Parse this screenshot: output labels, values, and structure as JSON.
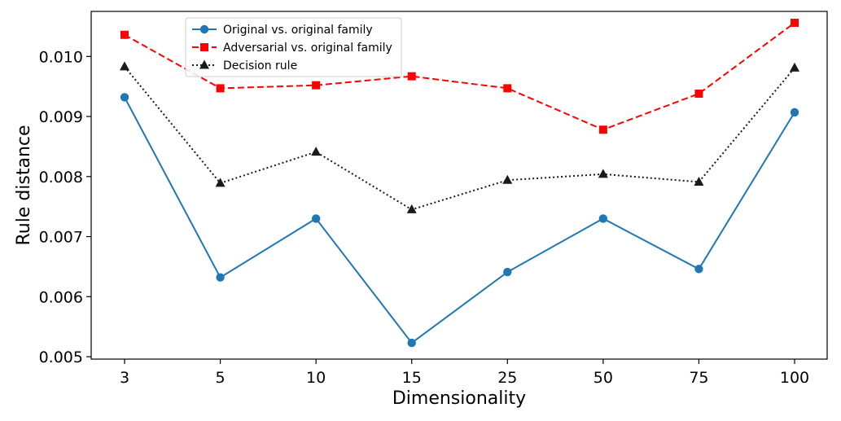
{
  "chart_data": {
    "type": "line",
    "title": "",
    "xlabel": "Dimensionality",
    "ylabel": "Rule distance",
    "categories": [
      "3",
      "5",
      "10",
      "15",
      "25",
      "50",
      "75",
      "100"
    ],
    "ylim": [
      0.00496,
      0.01075
    ],
    "yticks": [
      0.005,
      0.006,
      0.007,
      0.008,
      0.009,
      0.01
    ],
    "ytick_labels": [
      "0.005",
      "0.006",
      "0.007",
      "0.008",
      "0.009",
      "0.010"
    ],
    "grid": false,
    "legend_position": "top-left",
    "series": [
      {
        "name": "Original vs. original family",
        "color": "#1f77b4",
        "line_style": "solid",
        "marker": "circle",
        "values": [
          0.00932,
          0.00632,
          0.0073,
          0.00523,
          0.00641,
          0.0073,
          0.00646,
          0.00907
        ]
      },
      {
        "name": "Adversarial vs. original family",
        "color": "#ff0000",
        "line_style": "dashed",
        "marker": "square",
        "values": [
          0.01036,
          0.00947,
          0.00952,
          0.00967,
          0.00947,
          0.00878,
          0.00938,
          0.01056
        ]
      },
      {
        "name": "Decision rule",
        "color": "#1a1a1a",
        "line_style": "dotted",
        "marker": "triangle",
        "values": [
          0.00983,
          0.00789,
          0.00841,
          0.00745,
          0.00794,
          0.00804,
          0.00791,
          0.00981
        ]
      }
    ]
  }
}
